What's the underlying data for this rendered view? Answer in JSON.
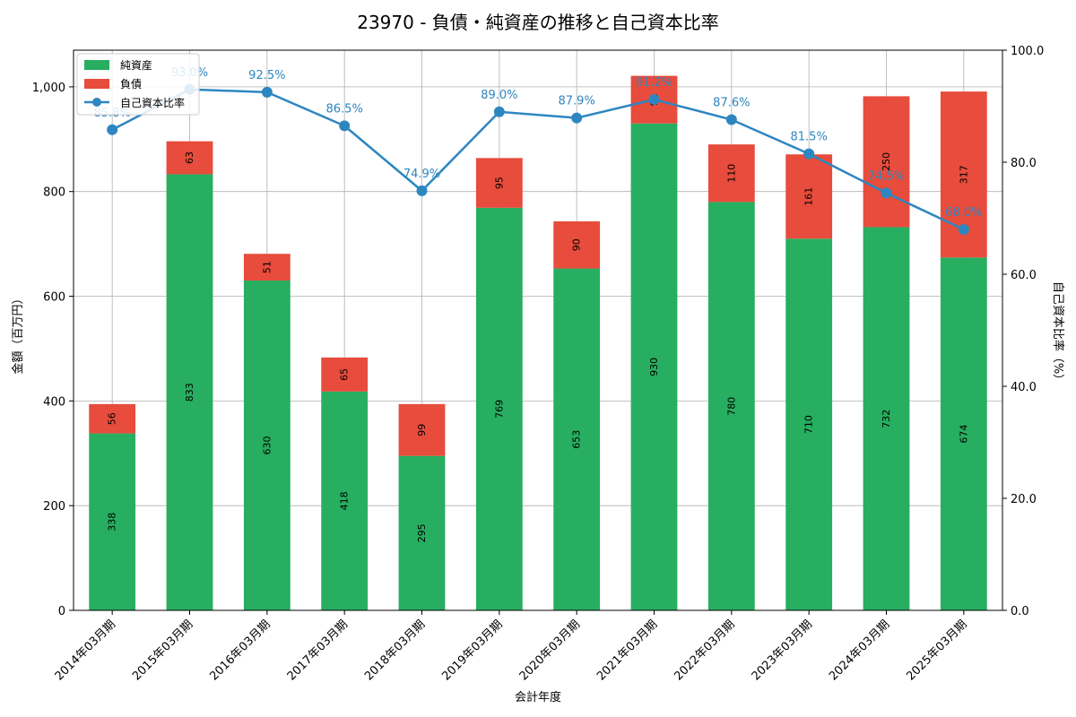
{
  "chart_data": {
    "type": "bar",
    "title": "23970 - 負債・純資産の推移と自己資本比率",
    "xlabel": "会計年度",
    "ylabel": "金額（百万円）",
    "y2label": "自己資本比率（%）",
    "ylim": [
      0,
      1070
    ],
    "y2lim": [
      0,
      100
    ],
    "yticks": [
      0,
      200,
      400,
      600,
      800,
      1000
    ],
    "ytick_labels": [
      "0",
      "200",
      "400",
      "600",
      "800",
      "1,000"
    ],
    "y2ticks": [
      0,
      20,
      40,
      60,
      80,
      100
    ],
    "y2tick_labels": [
      "0.0",
      "20.0",
      "40.0",
      "60.0",
      "80.0",
      "100.0"
    ],
    "categories": [
      "2014年03月期",
      "2015年03月期",
      "2016年03月期",
      "2017年03月期",
      "2018年03月期",
      "2019年03月期",
      "2020年03月期",
      "2021年03月期",
      "2022年03月期",
      "2023年03月期",
      "2024年03月期",
      "2025年03月期"
    ],
    "series": [
      {
        "name": "純資産",
        "type": "bar",
        "color": "#27ae60",
        "values": [
          338,
          833,
          630,
          418,
          295,
          769,
          653,
          930,
          780,
          710,
          732,
          674
        ],
        "labels": [
          "338",
          "833",
          "630",
          "418",
          "295",
          "769",
          "653",
          "930",
          "780",
          "710",
          "732",
          "674"
        ]
      },
      {
        "name": "負債",
        "type": "bar",
        "color": "#e74c3c",
        "values": [
          56,
          63,
          51,
          65,
          99,
          95,
          90,
          91,
          110,
          161,
          250,
          317
        ],
        "labels": [
          "56",
          "63",
          "51",
          "65",
          "99",
          "95",
          "90",
          "91",
          "110",
          "161",
          "250",
          "317"
        ]
      },
      {
        "name": "自己資本比率",
        "type": "line",
        "color": "#2e86c1",
        "axis": "right",
        "values": [
          85.8,
          93.0,
          92.5,
          86.5,
          74.9,
          89.0,
          87.9,
          91.2,
          87.6,
          81.5,
          74.5,
          68.0
        ],
        "labels": [
          "85.8%",
          "93.0%",
          "92.5%",
          "86.5%",
          "74.9%",
          "89.0%",
          "87.9%",
          "91.2%",
          "87.6%",
          "81.5%",
          "74.5%",
          "68.0%"
        ]
      }
    ],
    "legend": "top-left",
    "grid": true
  }
}
